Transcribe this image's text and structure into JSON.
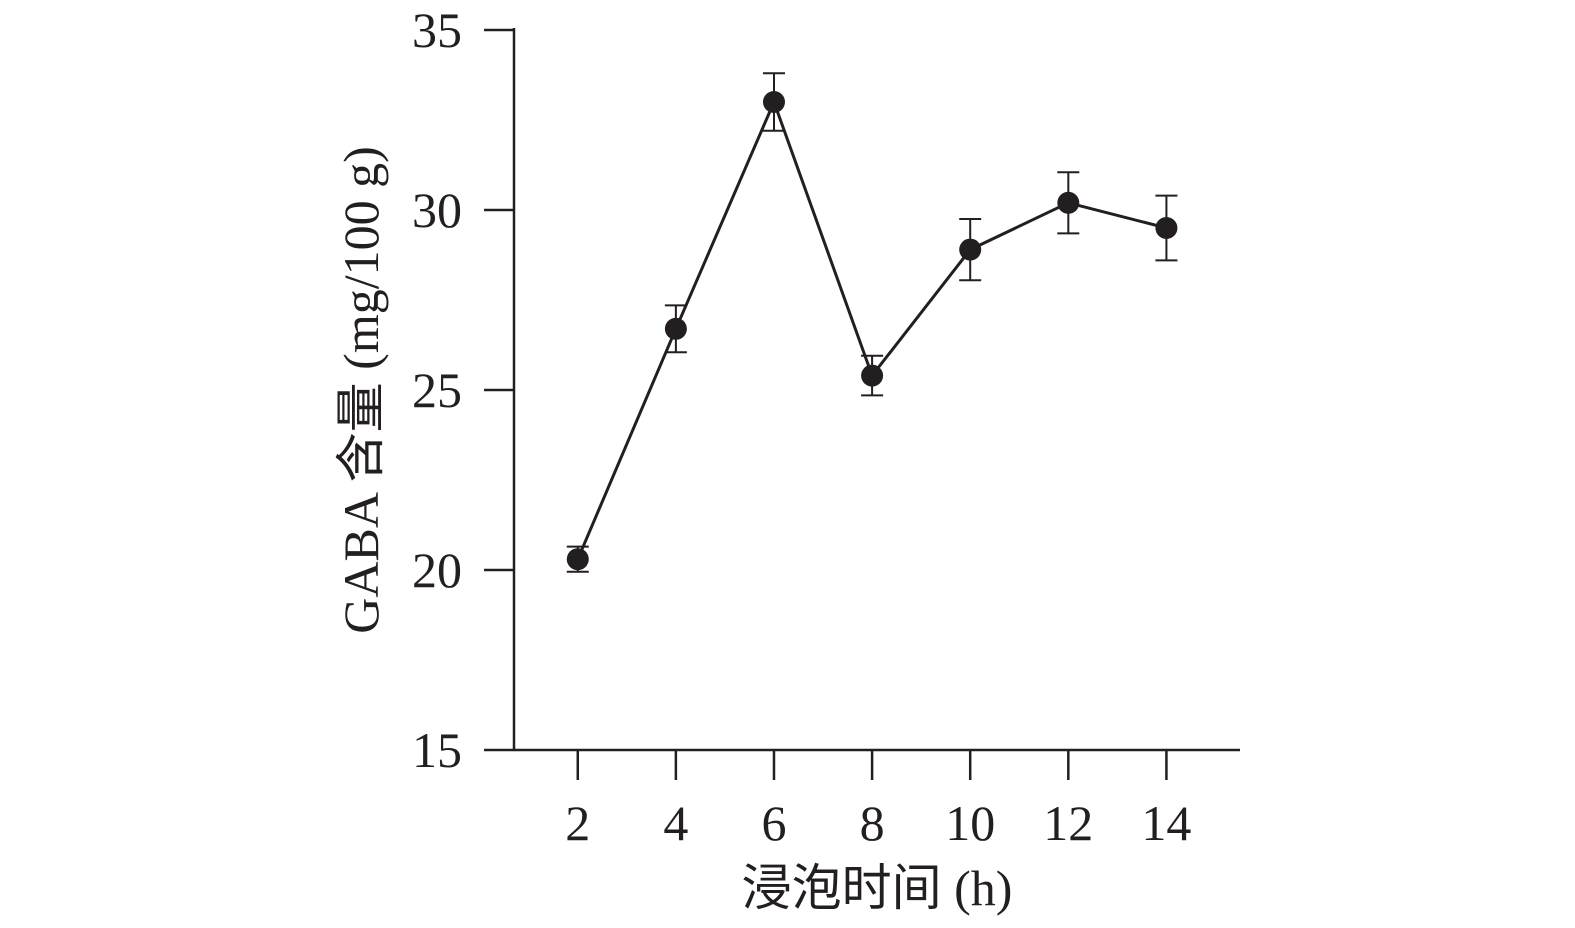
{
  "chart_data": {
    "type": "line",
    "title": "",
    "xlabel": "浸泡时间 (h)",
    "ylabel": "GABA 含量 (mg/100 g)",
    "x": [
      2,
      4,
      6,
      8,
      10,
      12,
      14
    ],
    "x_ticks": [
      "2",
      "4",
      "6",
      "8",
      "10",
      "12",
      "14"
    ],
    "y_ticks": [
      "15",
      "20",
      "25",
      "30",
      "35"
    ],
    "xlim": [
      0.7,
      15.5
    ],
    "ylim": [
      15,
      35
    ],
    "grid": false,
    "legend": "none",
    "series": [
      {
        "values": [
          20.3,
          26.7,
          33.0,
          25.4,
          28.9,
          30.2,
          29.5
        ],
        "error": [
          0.35,
          0.65,
          0.8,
          0.55,
          0.85,
          0.85,
          0.9
        ],
        "color": "#231f20",
        "marker": "filled-circle"
      }
    ]
  }
}
